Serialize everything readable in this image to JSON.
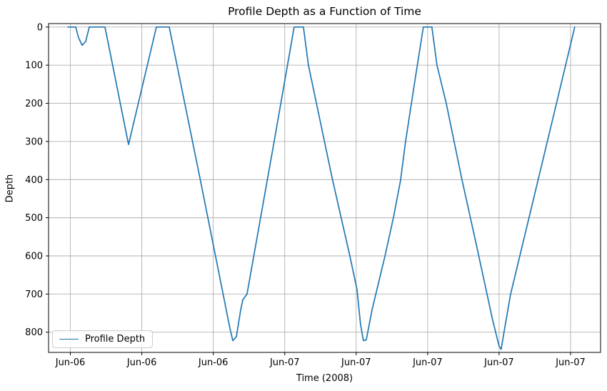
{
  "title": "Profile Depth as a Function of Time",
  "axes": {
    "xlabel": "Time (2008)",
    "ylabel": "Depth"
  },
  "legend": {
    "label": "Profile Depth",
    "position": "lower left"
  },
  "colors": {
    "line": "#1f77b4",
    "grid": "#b0b0b0",
    "spine": "#000000",
    "background": "#ffffff",
    "text": "#000000"
  },
  "chart_data": {
    "type": "line",
    "title": "Profile Depth as a Function of Time",
    "xlabel": "Time (2008)",
    "ylabel": "Depth",
    "grid": true,
    "legend_position": "lower left",
    "y_axis_inverted": true,
    "x_unit": "x expressed in tick intervals (ticks evenly spaced, ~6 h apart)",
    "x_tick_positions": [
      0,
      1,
      2,
      3,
      4,
      5,
      6,
      7
    ],
    "x_tick_labels": [
      "Jun-06",
      "Jun-06",
      "Jun-06",
      "Jun-07",
      "Jun-07",
      "Jun-07",
      "Jun-07",
      "Jun-07"
    ],
    "y_ticks": [
      0,
      100,
      200,
      300,
      400,
      500,
      600,
      700,
      800
    ],
    "xlim": [
      -0.305,
      7.42
    ],
    "ylim_top": -9,
    "ylim_bottom": 853,
    "series": [
      {
        "name": "Profile Depth",
        "color": "#1f77b4",
        "x": [
          -0.035,
          0.075,
          0.115,
          0.165,
          0.215,
          0.265,
          0.484,
          0.814,
          1.204,
          1.384,
          1.813,
          2.233,
          2.273,
          2.323,
          2.383,
          2.413,
          2.472,
          2.852,
          3.132,
          3.262,
          3.332,
          3.662,
          3.911,
          4.011,
          4.061,
          4.101,
          4.141,
          4.221,
          4.401,
          4.521,
          4.621,
          4.69,
          4.81,
          4.94,
          5.06,
          5.13,
          5.26,
          5.48,
          5.69,
          5.909,
          5.999,
          6.029,
          6.069,
          6.159,
          6.419,
          6.758,
          7.058
        ],
        "depth": [
          0,
          0,
          28,
          48,
          38,
          0,
          0,
          308,
          0,
          0,
          395,
          790,
          822,
          812,
          742,
          715,
          700,
          300,
          0,
          0,
          100,
          395,
          600,
          688,
          780,
          822,
          820,
          742,
          602,
          500,
          402,
          302,
          155,
          0,
          0,
          100,
          200,
          400,
          578,
          768,
          836,
          845,
          800,
          702,
          500,
          235,
          0
        ]
      }
    ]
  }
}
